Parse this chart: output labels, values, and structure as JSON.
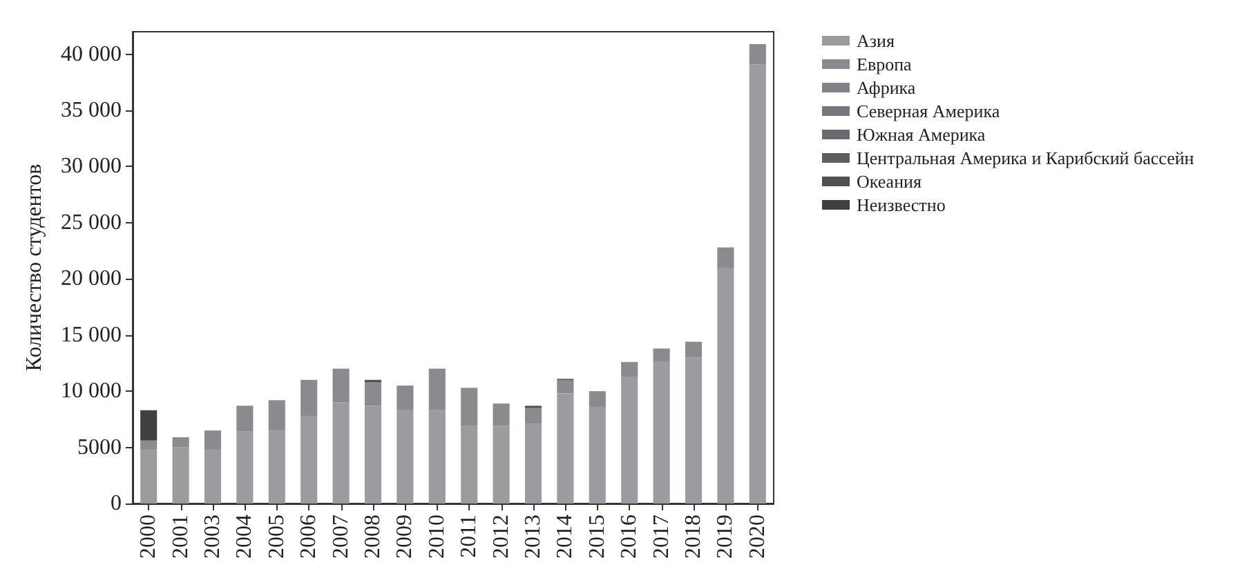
{
  "chart_data": {
    "type": "bar",
    "stacked": true,
    "ylabel": "Количество студентов",
    "categories": [
      "2000",
      "2001",
      "2003",
      "2004",
      "2005",
      "2006",
      "2007",
      "2008",
      "2009",
      "2010",
      "2011",
      "2012",
      "2013",
      "2014",
      "2015",
      "2016",
      "2017",
      "2018",
      "2019",
      "2020"
    ],
    "series": [
      {
        "name": "Азия",
        "color": "#9c9ca0",
        "values": [
          4800,
          5000,
          4800,
          6400,
          6500,
          7800,
          9000,
          8700,
          8300,
          8300,
          6900,
          6900,
          7100,
          9800,
          8600,
          11300,
          12600,
          13000,
          21000,
          39100
        ]
      },
      {
        "name": "Европа",
        "color": "#8b8b8f",
        "values": [
          800,
          900,
          1700,
          2300,
          2700,
          3200,
          3000,
          2100,
          2200,
          3700,
          3400,
          2000,
          1400,
          1200,
          1400,
          1300,
          1200,
          1400,
          1800,
          1800
        ]
      },
      {
        "name": "Африка",
        "color": "#838387",
        "values": [
          null,
          null,
          null,
          null,
          null,
          null,
          null,
          null,
          null,
          null,
          null,
          null,
          null,
          null,
          null,
          null,
          null,
          null,
          null,
          null
        ]
      },
      {
        "name": "Северная Америка",
        "color": "#77777b",
        "values": [
          null,
          null,
          null,
          null,
          null,
          null,
          null,
          null,
          null,
          null,
          null,
          null,
          null,
          null,
          null,
          null,
          null,
          null,
          null,
          null
        ]
      },
      {
        "name": "Южная Америка",
        "color": "#6b6b6f",
        "values": [
          null,
          null,
          null,
          null,
          null,
          null,
          null,
          null,
          null,
          null,
          null,
          null,
          null,
          null,
          null,
          null,
          null,
          null,
          null,
          null
        ]
      },
      {
        "name": "Центральная Америка и Карибский бассейн",
        "color": "#5e5e62",
        "values": [
          null,
          null,
          null,
          null,
          null,
          null,
          null,
          null,
          null,
          null,
          null,
          null,
          null,
          null,
          null,
          null,
          null,
          null,
          null,
          null
        ]
      },
      {
        "name": "Океания",
        "color": "#505054",
        "values": [
          null,
          null,
          null,
          null,
          null,
          null,
          null,
          200,
          null,
          null,
          null,
          null,
          200,
          100,
          null,
          null,
          null,
          null,
          null,
          null
        ]
      },
      {
        "name": "Неизвестно",
        "color": "#404044",
        "values": [
          2700,
          null,
          null,
          null,
          null,
          null,
          null,
          null,
          null,
          null,
          null,
          null,
          null,
          null,
          null,
          null,
          null,
          null,
          null,
          null
        ]
      }
    ],
    "ylim": [
      0,
      42000
    ],
    "yticks": [
      0,
      5000,
      {
        "value": 10000,
        "label": "10 000"
      },
      {
        "value": 15000,
        "label": "15 000"
      },
      {
        "value": 20000,
        "label": "20 000"
      },
      {
        "value": 25000,
        "label": "25 000"
      },
      {
        "value": 30000,
        "label": "30 000"
      },
      {
        "value": 35000,
        "label": "35 000"
      },
      {
        "value": 40000,
        "label": "40 000"
      }
    ],
    "grid": false,
    "legend": "top right"
  }
}
